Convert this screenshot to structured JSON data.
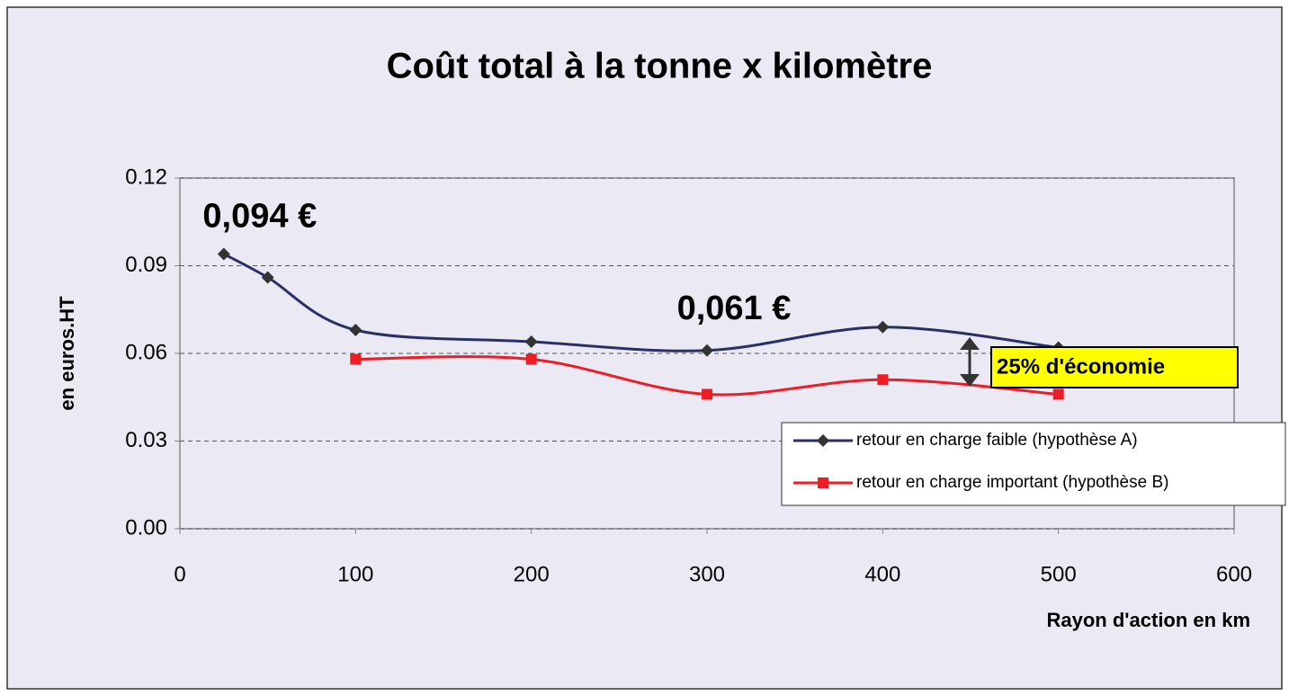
{
  "chart_data": {
    "type": "line",
    "title": "Coût total à la tonne x kilomètre",
    "x_label": "Rayon d'action en km",
    "y_label": "en euros.HT",
    "xlim": [
      0,
      600
    ],
    "xticks": [
      0,
      100,
      200,
      300,
      400,
      500,
      600
    ],
    "ylim": [
      0,
      0.12
    ],
    "yticks": [
      {
        "value": 0,
        "label": "0.00"
      },
      0.03,
      0.06,
      0.09,
      0.12
    ],
    "grid": true,
    "legend": "lower right",
    "series": [
      {
        "name": "retour en charge faible (hypothèse A)",
        "color": "#2a2f6a",
        "marker": "diamond",
        "x": [
          25,
          50,
          100,
          200,
          300,
          400,
          500
        ],
        "values": [
          0.094,
          0.086,
          0.068,
          0.064,
          0.061,
          0.069,
          0.062
        ]
      },
      {
        "name": "retour en charge important (hypothèse B)",
        "color": "#ee1c24",
        "marker": "square",
        "x": [
          100,
          200,
          300,
          400,
          500
        ],
        "values": [
          0.058,
          0.058,
          0.046,
          0.051,
          0.046
        ]
      }
    ],
    "annotations": [
      "0,094 €",
      "0,061 €",
      "25% d'économie"
    ]
  }
}
